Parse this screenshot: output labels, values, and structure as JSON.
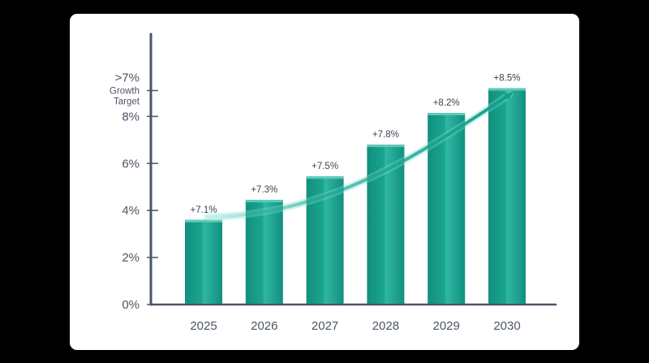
{
  "chart_data": {
    "type": "bar",
    "categories": [
      "2025",
      "2026",
      "2027",
      "2028",
      "2029",
      "2030"
    ],
    "values": [
      3.6,
      4.45,
      5.45,
      6.8,
      8.15,
      9.2
    ],
    "data_labels": [
      "+7.1%",
      "+7.3%",
      "+7.5%",
      "+7.8%",
      "+8.2%",
      "+8.5%"
    ],
    "y_ticks": [
      {
        "value": 0,
        "label": "0%"
      },
      {
        "value": 2,
        "label": "2%"
      },
      {
        "value": 4,
        "label": "4%"
      },
      {
        "value": 6,
        "label": "6%"
      },
      {
        "value": 8,
        "label": "8%"
      }
    ],
    "target": {
      "value": 9.1,
      "label_lines": [
        ">7%",
        "Growth",
        "Target"
      ]
    },
    "ylim": [
      0,
      11.5
    ],
    "title": "",
    "xlabel": "",
    "ylabel": "",
    "grid": false,
    "trend_arrow": true,
    "colors": {
      "bar": "#17a08c",
      "bar_dark": "#0f8a78",
      "bar_light": "#5fcab8",
      "axis": "#4a5566",
      "arrow": "#17a08c"
    }
  }
}
